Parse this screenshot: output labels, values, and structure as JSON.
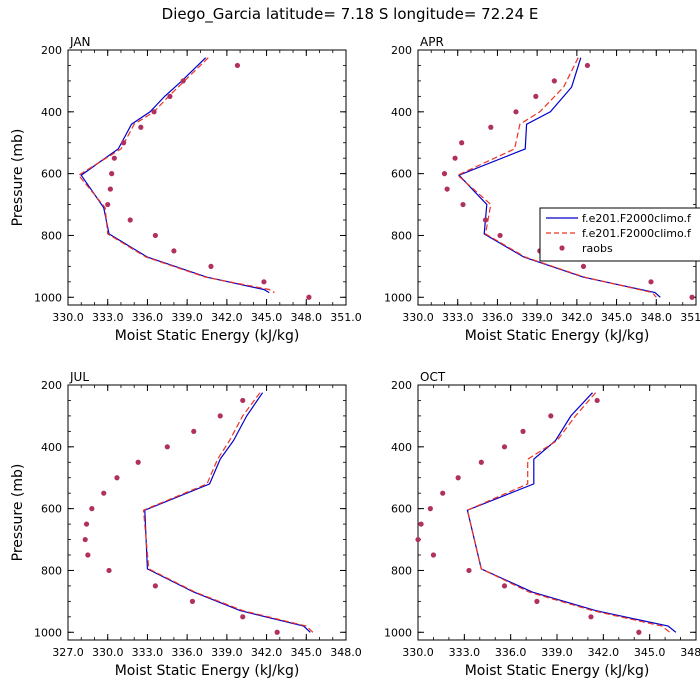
{
  "figure": {
    "title": "Diego_Garcia  latitude= 7.18 S longitude= 72.24 E"
  },
  "colors": {
    "model1": "#0000cc",
    "model2": "#ee3322",
    "obs": "#b03060"
  },
  "legend": {
    "placement": "inside-right of APR panel",
    "entries": [
      {
        "label": "f.e201.F2000climo.f",
        "style": "solid",
        "color_key": "model1"
      },
      {
        "label": "f.e201.F2000climo.f",
        "style": "dashed",
        "color_key": "model2"
      },
      {
        "label": "raobs",
        "style": "marker",
        "color_key": "obs"
      }
    ]
  },
  "chart_data": [
    {
      "type": "line",
      "panel_label": "JAN",
      "xlabel": "Moist Static Energy (kJ/kg)",
      "ylabel": "Pressure (mb)",
      "xlim": [
        330,
        351
      ],
      "xticks": [
        "330.0",
        "333.0",
        "336.0",
        "339.0",
        "342.0",
        "345.0",
        "348.0",
        "351.0"
      ],
      "ylim": [
        1025,
        200
      ],
      "yticks": [
        "200",
        "400",
        "600",
        "800",
        "1000"
      ],
      "grid": false,
      "series": [
        {
          "color_key": "model1",
          "style": "solid",
          "p": [
            225,
            300,
            350,
            400,
            440,
            520,
            605,
            710,
            795,
            870,
            935,
            975,
            985
          ],
          "x": [
            340.4,
            338.6,
            337.3,
            336.2,
            334.8,
            333.8,
            331.0,
            332.7,
            333.1,
            336.0,
            340.5,
            344.8,
            345.2
          ]
        },
        {
          "color_key": "model2",
          "style": "dashed",
          "p": [
            225,
            300,
            350,
            400,
            440,
            520,
            605,
            710,
            795,
            870,
            935,
            975,
            985
          ],
          "x": [
            340.6,
            338.8,
            337.6,
            336.5,
            335.0,
            334.0,
            330.8,
            332.8,
            333.0,
            335.9,
            340.4,
            345.2,
            345.6
          ]
        },
        {
          "color_key": "obs",
          "style": "marker",
          "p": [
            250,
            300,
            350,
            400,
            450,
            500,
            550,
            600,
            650,
            700,
            750,
            800,
            850,
            900,
            950,
            1000
          ],
          "x": [
            342.8,
            338.7,
            337.7,
            336.5,
            335.5,
            334.2,
            333.5,
            333.3,
            333.2,
            333.0,
            334.7,
            336.6,
            338.0,
            340.8,
            344.8,
            348.2
          ]
        }
      ]
    },
    {
      "type": "line",
      "panel_label": "APR",
      "xlabel": "Moist Static Energy (kJ/kg)",
      "ylabel": "",
      "xlim": [
        330,
        351
      ],
      "xticks": [
        "330.0",
        "333.0",
        "336.0",
        "339.0",
        "342.0",
        "345.0",
        "348.0",
        "351.0"
      ],
      "ylim": [
        1025,
        200
      ],
      "yticks": [
        "200",
        "400",
        "600",
        "800",
        "1000"
      ],
      "grid": false,
      "series": [
        {
          "color_key": "model1",
          "style": "solid",
          "p": [
            225,
            320,
            400,
            440,
            520,
            605,
            700,
            795,
            870,
            935,
            985,
            1000
          ],
          "x": [
            342.3,
            341.6,
            340.0,
            338.2,
            338.1,
            333.1,
            335.2,
            335.0,
            338.0,
            342.5,
            347.9,
            348.3
          ]
        },
        {
          "color_key": "model2",
          "style": "dashed",
          "p": [
            225,
            320,
            400,
            440,
            520,
            605,
            700,
            795,
            870,
            935,
            985,
            1000
          ],
          "x": [
            342.1,
            341.0,
            339.2,
            337.7,
            337.3,
            333.0,
            335.5,
            335.1,
            338.1,
            342.6,
            347.7,
            348.0
          ]
        },
        {
          "color_key": "obs",
          "style": "marker",
          "p": [
            250,
            300,
            350,
            400,
            450,
            500,
            550,
            600,
            650,
            700,
            750,
            800,
            850,
            900,
            950,
            1000
          ],
          "x": [
            342.8,
            340.3,
            338.9,
            337.4,
            335.5,
            333.3,
            332.8,
            332.0,
            332.2,
            333.4,
            335.1,
            336.2,
            339.2,
            342.5,
            347.6,
            350.7
          ]
        }
      ]
    },
    {
      "type": "line",
      "panel_label": "JUL",
      "xlabel": "Moist Static Energy (kJ/kg)",
      "ylabel": "Pressure (mb)",
      "xlim": [
        327,
        348
      ],
      "xticks": [
        "327.0",
        "330.0",
        "333.0",
        "336.0",
        "339.0",
        "342.0",
        "345.0",
        "348.0"
      ],
      "ylim": [
        1025,
        200
      ],
      "yticks": [
        "200",
        "400",
        "600",
        "800",
        "1000"
      ],
      "grid": false,
      "series": [
        {
          "color_key": "model1",
          "style": "solid",
          "p": [
            225,
            300,
            380,
            440,
            520,
            605,
            795,
            870,
            930,
            980,
            1000
          ],
          "x": [
            341.7,
            340.5,
            339.5,
            338.5,
            337.7,
            332.8,
            333.0,
            336.5,
            340.0,
            344.8,
            345.3
          ]
        },
        {
          "color_key": "model2",
          "style": "dashed",
          "p": [
            225,
            300,
            380,
            440,
            520,
            605,
            795,
            870,
            930,
            980,
            1000
          ],
          "x": [
            341.5,
            340.2,
            339.2,
            338.3,
            337.5,
            332.7,
            333.1,
            336.6,
            340.2,
            345.0,
            345.5
          ]
        },
        {
          "color_key": "obs",
          "style": "marker",
          "p": [
            250,
            300,
            350,
            400,
            450,
            500,
            550,
            600,
            650,
            700,
            750,
            800,
            850,
            900,
            950,
            1000
          ],
          "x": [
            340.2,
            338.5,
            336.5,
            334.5,
            332.3,
            330.7,
            329.7,
            328.8,
            328.4,
            328.3,
            328.5,
            330.1,
            333.6,
            336.4,
            340.2,
            342.8
          ]
        }
      ]
    },
    {
      "type": "line",
      "panel_label": "OCT",
      "xlabel": "Moist Static Energy (kJ/kg)",
      "ylabel": "",
      "xlim": [
        330,
        348
      ],
      "xticks": [
        "330.0",
        "333.0",
        "336.0",
        "339.0",
        "342.0",
        "345.0",
        "348.0"
      ],
      "ylim": [
        1025,
        200
      ],
      "yticks": [
        "200",
        "400",
        "600",
        "800",
        "1000"
      ],
      "grid": false,
      "series": [
        {
          "color_key": "model1",
          "style": "solid",
          "p": [
            225,
            300,
            380,
            440,
            520,
            605,
            795,
            870,
            930,
            980,
            1000
          ],
          "x": [
            341.3,
            339.9,
            338.9,
            337.5,
            337.5,
            333.2,
            334.1,
            337.4,
            341.5,
            346.2,
            346.7
          ]
        },
        {
          "color_key": "model2",
          "style": "dashed",
          "p": [
            225,
            300,
            380,
            440,
            520,
            605,
            795,
            870,
            930,
            980,
            1000
          ],
          "x": [
            341.5,
            340.2,
            339.0,
            337.1,
            337.1,
            333.2,
            334.1,
            337.2,
            341.3,
            345.8,
            346.3
          ]
        },
        {
          "color_key": "obs",
          "style": "marker",
          "p": [
            250,
            300,
            350,
            400,
            450,
            500,
            550,
            600,
            650,
            700,
            750,
            800,
            850,
            900,
            950,
            1000
          ],
          "x": [
            341.6,
            338.6,
            336.8,
            335.6,
            334.1,
            332.6,
            331.6,
            330.8,
            330.2,
            330.0,
            331.0,
            333.3,
            335.6,
            337.7,
            341.2,
            344.3
          ]
        }
      ]
    }
  ]
}
